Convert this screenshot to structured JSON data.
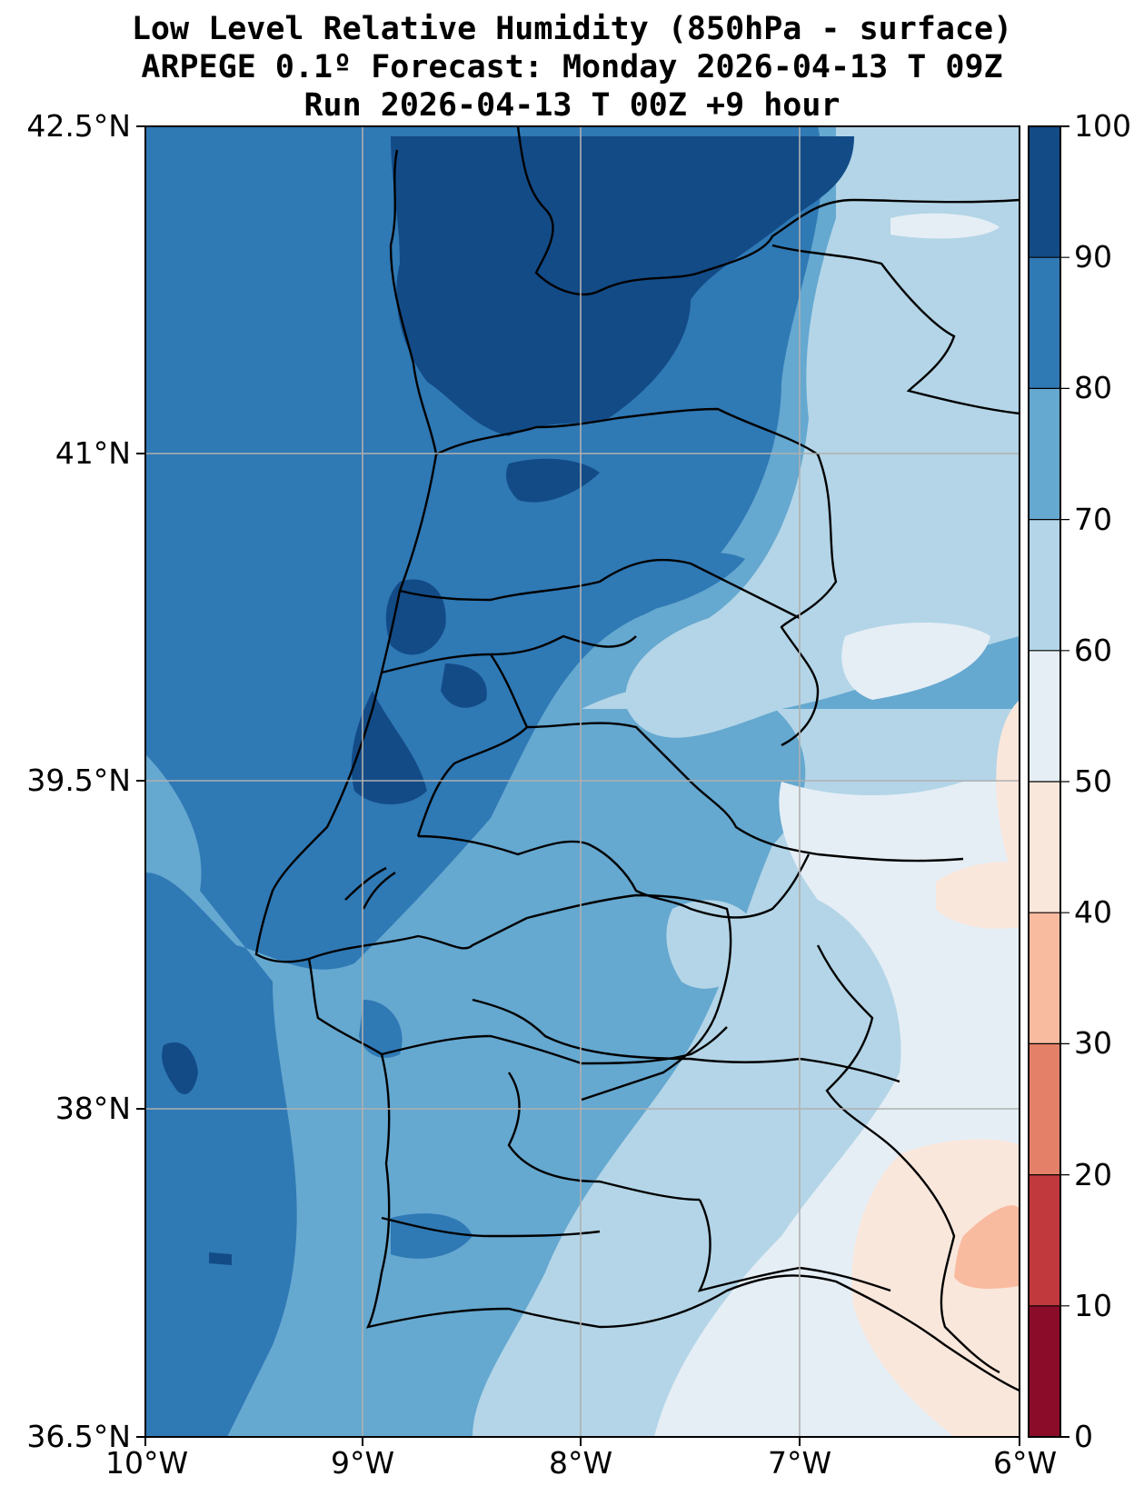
{
  "title": {
    "line1": "Low Level Relative Humidity (850hPa - surface)",
    "line2": "ARPEGE 0.1º Forecast: Monday 2026-04-13 T 09Z",
    "line3": "Run 2026-04-13 T 00Z +9 hour"
  },
  "axes": {
    "lat_labels": [
      "42.5°N",
      "41°N",
      "39.5°N",
      "38°N",
      "36.5°N"
    ],
    "lon_labels": [
      "10°W",
      "9°W",
      "8°W",
      "7°W",
      "6°W"
    ]
  },
  "colorbar": {
    "ticks": [
      "100",
      "90",
      "80",
      "70",
      "60",
      "50",
      "40",
      "30",
      "20",
      "10",
      "0"
    ],
    "bins": [
      {
        "range": "90-100",
        "color": "#134b87"
      },
      {
        "range": "80-90",
        "color": "#2f79b5"
      },
      {
        "range": "70-80",
        "color": "#65a8d0"
      },
      {
        "range": "60-70",
        "color": "#b3d5e7"
      },
      {
        "range": "50-60",
        "color": "#e5eef5"
      },
      {
        "range": "40-50",
        "color": "#fae7dc"
      },
      {
        "range": "30-40",
        "color": "#f9bba0"
      },
      {
        "range": "20-30",
        "color": "#e48067"
      },
      {
        "range": "10-20",
        "color": "#c1393d"
      },
      {
        "range": "0-10",
        "color": "#8a0c28"
      }
    ]
  }
}
